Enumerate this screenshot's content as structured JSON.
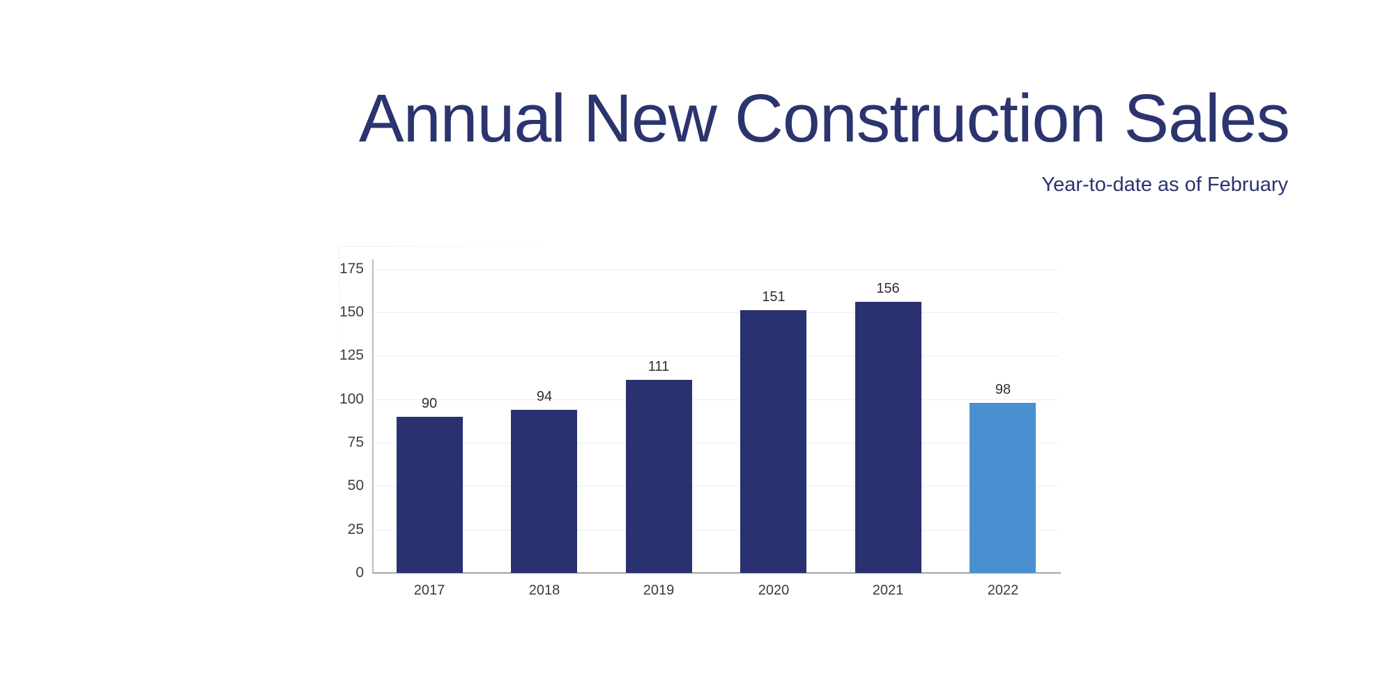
{
  "header": {
    "title": "Annual New Construction Sales",
    "subtitle": "Year-to-date as of February"
  },
  "chart_data": {
    "type": "bar",
    "title": "Annual New Construction Sales",
    "subtitle": "Year-to-date as of February",
    "categories": [
      "2017",
      "2018",
      "2019",
      "2020",
      "2021",
      "2022"
    ],
    "values": [
      90,
      94,
      111,
      151,
      156,
      98
    ],
    "value_labels": [
      "90",
      "94",
      "111",
      "151",
      "156",
      "98"
    ],
    "bar_colors": [
      "#293170",
      "#293170",
      "#293170",
      "#293170",
      "#293170",
      "#4a90d0"
    ],
    "highlight_index": 5,
    "y_ticks": [
      0,
      25,
      50,
      75,
      100,
      125,
      150,
      175
    ],
    "y_tick_labels": [
      "0",
      "25",
      "50",
      "75",
      "100",
      "125",
      "150",
      "175"
    ],
    "ylim": [
      0,
      180
    ],
    "xlabel": "",
    "ylabel": "",
    "grid": true,
    "legend": "none"
  },
  "colors": {
    "title_text": "#2b346e",
    "subtitle_text": "#2b346e",
    "bar_navy": "#293170",
    "bar_highlight_blue": "#4a90d0",
    "gridline": "#e9edf4",
    "axis_left": "#bdbdbd",
    "axis_bottom": "#a3a3a3",
    "y_tick_text": "#3d3d3d",
    "x_tick_text": "#3a3a3a",
    "value_label_text": "#2e2e2e",
    "background": "#ffffff"
  }
}
